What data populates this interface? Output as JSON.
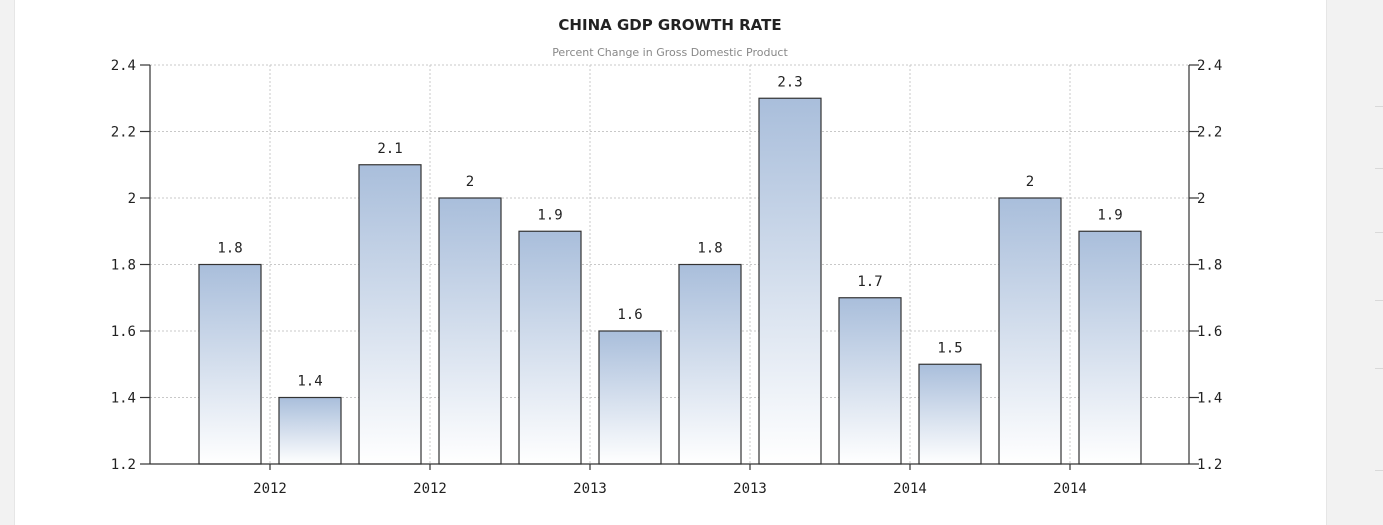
{
  "chart_data": {
    "type": "bar",
    "title": "CHINA GDP GROWTH RATE",
    "subtitle": "Percent Change in Gross Domestic Product",
    "values": [
      1.8,
      1.4,
      2.1,
      2.0,
      1.9,
      1.6,
      1.8,
      2.3,
      1.7,
      1.5,
      2.0,
      1.9
    ],
    "data_labels": [
      "1.8",
      "1.4",
      "2.1",
      "2",
      "1.9",
      "1.6",
      "1.8",
      "2.3",
      "1.7",
      "1.5",
      "2",
      "1.9"
    ],
    "x_tick_labels": [
      "2012",
      "2012",
      "2013",
      "2013",
      "2014",
      "2014"
    ],
    "y_tick_labels": [
      "1.2",
      "1.4",
      "1.6",
      "1.8",
      "2",
      "2.2",
      "2.4"
    ],
    "y_ticks": [
      1.2,
      1.4,
      1.6,
      1.8,
      2.0,
      2.2,
      2.4
    ],
    "ylim": [
      1.2,
      2.4
    ],
    "y_axes": "left and right",
    "grid": true,
    "legend": "none",
    "colors": {
      "bar_top": "#a9bedb",
      "bar_bottom": "#ffffff",
      "bar_stroke": "#333333",
      "grid": "#c8c8c8",
      "axis": "#333333"
    }
  }
}
